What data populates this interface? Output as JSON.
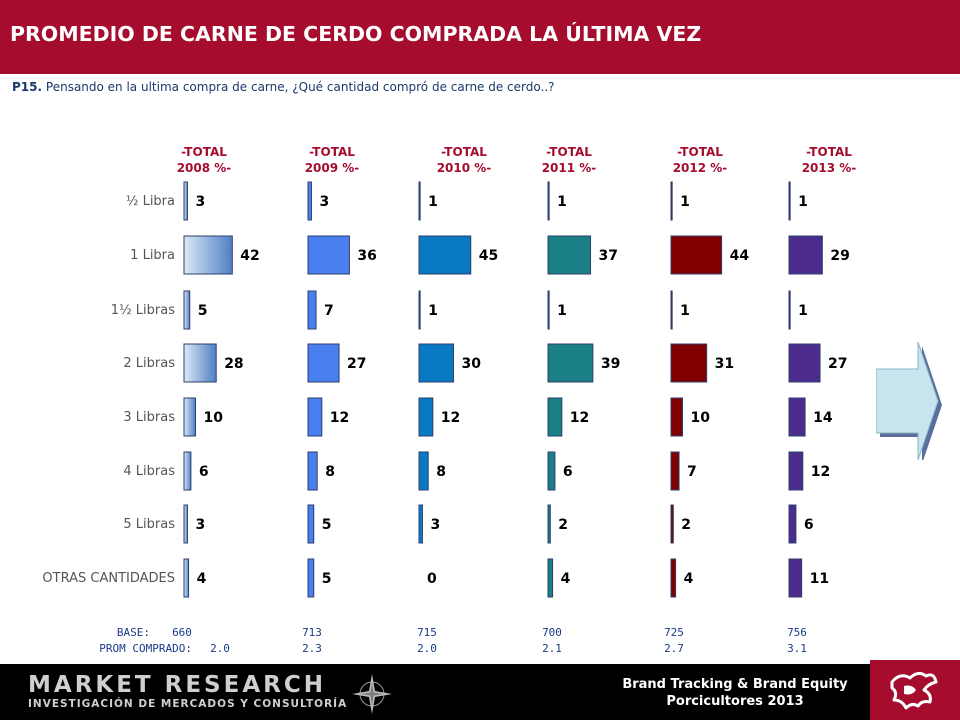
{
  "header": {
    "title": "PROMEDIO DE CARNE DE CERDO COMPRADA LA ÚLTIMA VEZ"
  },
  "question": {
    "code": "P15.",
    "text": "Pensando en la ultima compra de carne, ¿Qué cantidad compró de carne de cerdo..?"
  },
  "footer": {
    "logo_main": "MARKET RESEARCH",
    "logo_sub": "INVESTIGACIÓN DE MERCADOS Y CONSULTORÍA",
    "study_line1": "Brand Tracking & Brand Equity",
    "study_line2": "Porcicultores 2013"
  },
  "icons": {
    "compass": "compass-rose-icon",
    "next": "next-arrow-icon",
    "brand": "pig-logo-icon"
  },
  "colors": {
    "title_bar": "#A50C2E",
    "text_blue": "#1a3a6b"
  },
  "chart_data": {
    "type": "bar",
    "orientation": "horizontal",
    "categories": [
      "½  Libra",
      "1 Libra",
      "1½ Libras",
      "2 Libras",
      "3 Libras",
      "4 Libras",
      "5 Libras",
      "OTRAS CANTIDADES"
    ],
    "series": [
      {
        "name": "-TOTAL 2008 %-",
        "header": [
          "-TOTAL",
          "2008 %-"
        ],
        "values": [
          3,
          42,
          5,
          28,
          10,
          6,
          3,
          4
        ],
        "color": "#5b8fd4",
        "base": "660",
        "prom": "2.0"
      },
      {
        "name": "-TOTAL 2009 %-",
        "header": [
          "-TOTAL",
          "2009 %-"
        ],
        "values": [
          3,
          36,
          7,
          27,
          12,
          8,
          5,
          5
        ],
        "color": "#4a7fef",
        "base": "713",
        "prom": "2.3"
      },
      {
        "name": "-TOTAL 2010 %-",
        "header": [
          "-TOTAL",
          "2010 %-"
        ],
        "values": [
          1,
          45,
          1,
          30,
          12,
          8,
          3,
          0
        ],
        "color": "#0a79c4",
        "base": "715",
        "prom": "2.0"
      },
      {
        "name": "-TOTAL 2011 %-",
        "header": [
          "-TOTAL",
          "2011 %-"
        ],
        "values": [
          1,
          37,
          1,
          39,
          12,
          6,
          2,
          4
        ],
        "color": "#1a7f86",
        "base": "700",
        "prom": "2.1"
      },
      {
        "name": "-TOTAL 2012 %-",
        "header": [
          "-TOTAL",
          "2012 %-"
        ],
        "values": [
          1,
          44,
          1,
          31,
          10,
          7,
          2,
          4
        ],
        "color": "#800000",
        "base": "725",
        "prom": "2.7"
      },
      {
        "name": "-TOTAL 2013 %-",
        "header": [
          "-TOTAL",
          "2013 %-"
        ],
        "values": [
          1,
          29,
          1,
          27,
          14,
          12,
          6,
          11
        ],
        "color": "#4b2c8c",
        "base": "756",
        "prom": "3.1"
      }
    ],
    "base_label": "BASE:",
    "prom_label": "PROM COMPRADO:",
    "data_labels": true,
    "grid": false
  }
}
